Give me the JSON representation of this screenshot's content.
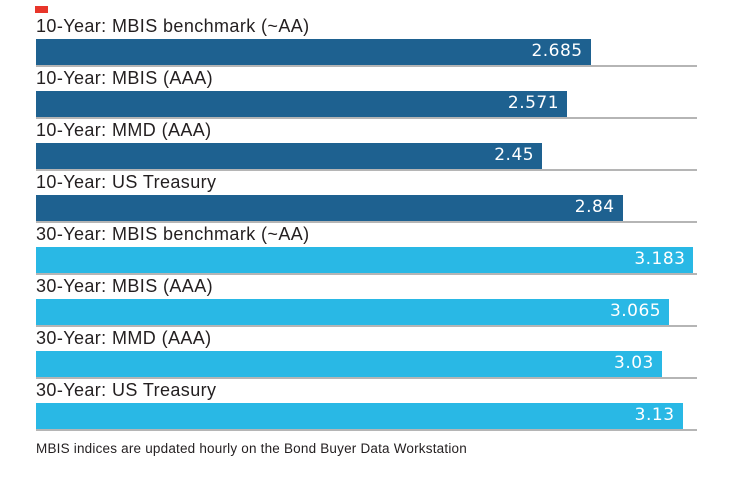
{
  "page": {
    "background": "#ffffff"
  },
  "decorations": {
    "red_dash_color": "#e8352a"
  },
  "chart_data": {
    "type": "bar",
    "orientation": "horizontal",
    "title": "",
    "xlabel": "",
    "ylabel": "",
    "categories": [
      "10-Year: MBIS benchmark (~AA)",
      "10-Year: MBIS (AAA)",
      "10-Year: MMD (AAA)",
      "10-Year: US Treasury",
      "30-Year: MBIS benchmark (~AA)",
      "30-Year: MBIS (AAA)",
      "30-Year: MMD (AAA)",
      "30-Year: US Treasury"
    ],
    "values": [
      2.685,
      2.571,
      2.45,
      2.84,
      3.183,
      3.065,
      3.03,
      3.13
    ],
    "value_labels": [
      "2.685",
      "2.571",
      "2.45",
      "2.84",
      "3.183",
      "3.065",
      "3.03",
      "3.13"
    ],
    "groups": [
      "10-year",
      "10-year",
      "10-year",
      "10-year",
      "30-year",
      "30-year",
      "30-year",
      "30-year"
    ],
    "group_colors": {
      "10-year": "#1e6190",
      "30-year": "#29b8e5"
    },
    "value_text_color": "#ffffff",
    "label_text_color": "#231f20",
    "baseline_color": "#b5b5b5",
    "xlim": [
      0,
      3.2
    ],
    "axis_max": 3.2,
    "grid": false,
    "legend": "none",
    "value_label_position": "inside-end"
  },
  "footer": {
    "note": "MBIS indices are updated hourly on the Bond Buyer Data Workstation"
  }
}
